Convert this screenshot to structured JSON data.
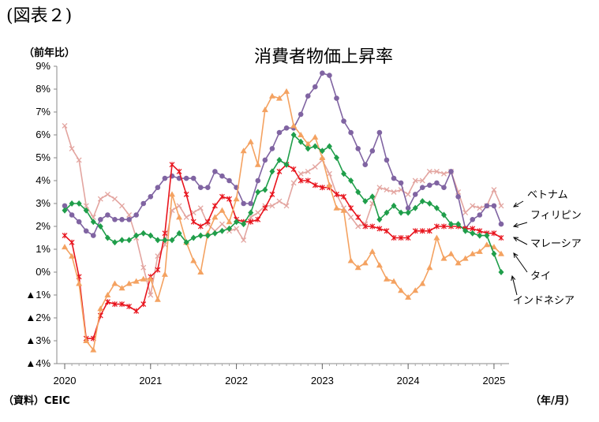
{
  "figure_label": "(図表２)",
  "chart_data": {
    "type": "line",
    "title": "消費者物価上昇率",
    "ylabel": "（前年比）",
    "xlabel": "（年/月）",
    "source": "（資料）CEIC",
    "ylim": [
      -4,
      9
    ],
    "y_ticks": [
      9,
      8,
      7,
      6,
      5,
      4,
      3,
      2,
      1,
      0,
      -1,
      -2,
      -3,
      -4
    ],
    "y_tick_labels": [
      "9%",
      "8%",
      "7%",
      "6%",
      "5%",
      "4%",
      "3%",
      "2%",
      "1%",
      "0%",
      "▲1%",
      "▲2%",
      "▲3%",
      "▲4%"
    ],
    "x_ticks": [
      0,
      12,
      24,
      36,
      48,
      60
    ],
    "x_tick_labels": [
      "2020",
      "2021",
      "2022",
      "2023",
      "2024",
      "2025"
    ],
    "x_first": "2020-01",
    "series": [
      {
        "name": "ベトナム",
        "color": "#e3a5a0",
        "marker": "x",
        "values": [
          6.4,
          5.4,
          4.9,
          2.9,
          2.4,
          3.2,
          3.4,
          3.2,
          2.9,
          2.5,
          1.5,
          0.2,
          -1.0,
          0.7,
          1.2,
          2.7,
          2.9,
          2.4,
          2.6,
          2.8,
          2.1,
          1.8,
          2.1,
          1.8,
          1.9,
          1.4,
          2.4,
          2.6,
          2.9,
          2.9,
          3.1,
          2.9,
          3.9,
          4.3,
          4.4,
          4.6,
          4.9,
          4.3,
          3.4,
          2.8,
          2.4,
          2.0,
          2.1,
          3.0,
          3.7,
          3.6,
          3.5,
          3.6,
          3.4,
          4.0,
          4.0,
          4.4,
          4.4,
          4.3,
          4.4,
          3.5,
          2.6,
          2.9,
          2.8,
          2.9,
          3.6,
          2.9
        ]
      },
      {
        "name": "フィリピン",
        "color": "#8064a2",
        "marker": "circle",
        "values": [
          2.9,
          2.5,
          2.2,
          1.8,
          1.6,
          2.3,
          2.5,
          2.3,
          2.3,
          2.3,
          2.5,
          3.0,
          3.3,
          3.7,
          4.1,
          4.2,
          4.1,
          4.1,
          4.1,
          3.7,
          3.7,
          4.4,
          4.2,
          4.0,
          3.7,
          3.0,
          3.0,
          4.0,
          4.9,
          5.4,
          6.1,
          6.3,
          6.3,
          6.9,
          7.7,
          8.1,
          8.7,
          8.6,
          7.6,
          6.6,
          6.1,
          5.4,
          4.7,
          5.3,
          6.1,
          4.9,
          4.1,
          3.9,
          2.8,
          3.4,
          3.7,
          3.8,
          3.9,
          3.7,
          4.4,
          3.3,
          1.9,
          2.3,
          2.5,
          2.9,
          2.9,
          2.1
        ]
      },
      {
        "name": "マレーシア",
        "color": "#e8141d",
        "marker": "star",
        "values": [
          1.6,
          1.3,
          -0.2,
          -2.9,
          -2.9,
          -1.9,
          -1.3,
          -1.4,
          -1.4,
          -1.5,
          -1.7,
          -1.4,
          -0.2,
          0.1,
          1.7,
          4.7,
          4.4,
          3.4,
          2.2,
          2.0,
          2.2,
          2.9,
          3.3,
          3.2,
          2.3,
          2.2,
          2.2,
          2.3,
          2.8,
          3.4,
          4.4,
          4.7,
          4.5,
          4.0,
          4.0,
          3.8,
          3.7,
          3.7,
          3.4,
          3.3,
          2.8,
          2.4,
          2.0,
          2.0,
          1.9,
          1.8,
          1.5,
          1.5,
          1.5,
          1.8,
          1.8,
          1.8,
          2.0,
          2.0,
          2.0,
          2.0,
          1.9,
          1.9,
          1.8,
          1.7,
          1.7,
          1.5
        ]
      },
      {
        "name": "タイ",
        "color": "#f4a261",
        "marker": "triangle",
        "values": [
          1.1,
          0.7,
          -0.5,
          -3.0,
          -3.4,
          -1.6,
          -1.0,
          -0.5,
          -0.7,
          -0.5,
          -0.4,
          -0.3,
          -0.3,
          -1.2,
          -0.1,
          3.4,
          2.4,
          1.3,
          0.5,
          0.0,
          1.7,
          2.4,
          2.7,
          2.2,
          3.2,
          5.3,
          5.7,
          4.7,
          7.1,
          7.7,
          7.6,
          7.9,
          6.4,
          6.0,
          5.6,
          5.9,
          5.0,
          3.8,
          2.8,
          2.7,
          0.5,
          0.2,
          0.4,
          0.9,
          0.3,
          -0.3,
          -0.4,
          -0.8,
          -1.1,
          -0.8,
          -0.5,
          0.2,
          1.5,
          0.6,
          0.8,
          0.4,
          0.6,
          0.8,
          0.9,
          1.2,
          1.1,
          0.8
        ]
      },
      {
        "name": "インドネシア",
        "color": "#1f9e4a",
        "marker": "diamond",
        "values": [
          2.7,
          3.0,
          3.0,
          2.7,
          2.2,
          2.0,
          1.5,
          1.3,
          1.4,
          1.4,
          1.6,
          1.7,
          1.6,
          1.4,
          1.4,
          1.4,
          1.7,
          1.3,
          1.5,
          1.6,
          1.6,
          1.7,
          1.8,
          1.9,
          2.2,
          2.1,
          2.6,
          3.5,
          3.6,
          4.4,
          4.9,
          4.7,
          6.0,
          5.7,
          5.4,
          5.5,
          5.3,
          5.5,
          5.0,
          4.3,
          4.0,
          3.5,
          3.1,
          3.3,
          2.3,
          2.6,
          2.9,
          2.6,
          2.6,
          2.8,
          3.1,
          3.0,
          2.8,
          2.5,
          2.1,
          2.1,
          1.8,
          1.7,
          1.6,
          1.6,
          0.8,
          0.0
        ]
      }
    ],
    "series_labels": [
      "ベトナム",
      "フィリピン",
      "マレーシア",
      "タイ",
      "インドネシア"
    ],
    "grid": false,
    "legend": "direct labels at right"
  }
}
